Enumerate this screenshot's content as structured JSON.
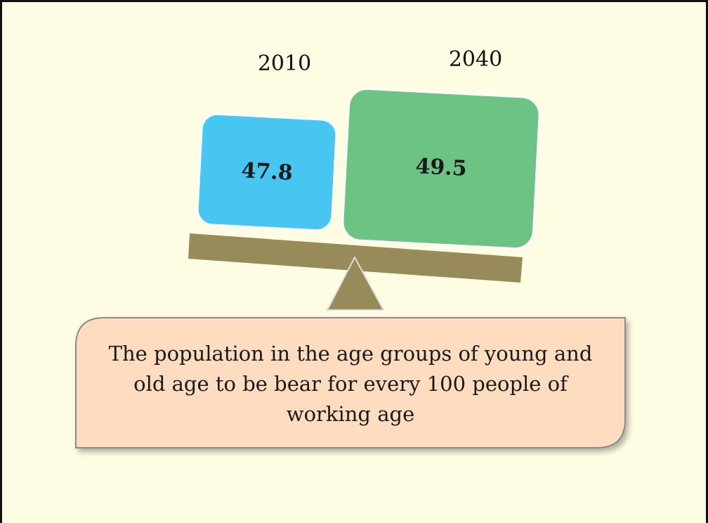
{
  "boxes": [
    {
      "year": "2010",
      "value": 47.8
    },
    {
      "year": "2040",
      "value": 49.5
    }
  ],
  "callout": {
    "lines": [
      "The population in the age groups of young and",
      "old age to be bear for every 100 people of",
      "working age"
    ]
  }
}
